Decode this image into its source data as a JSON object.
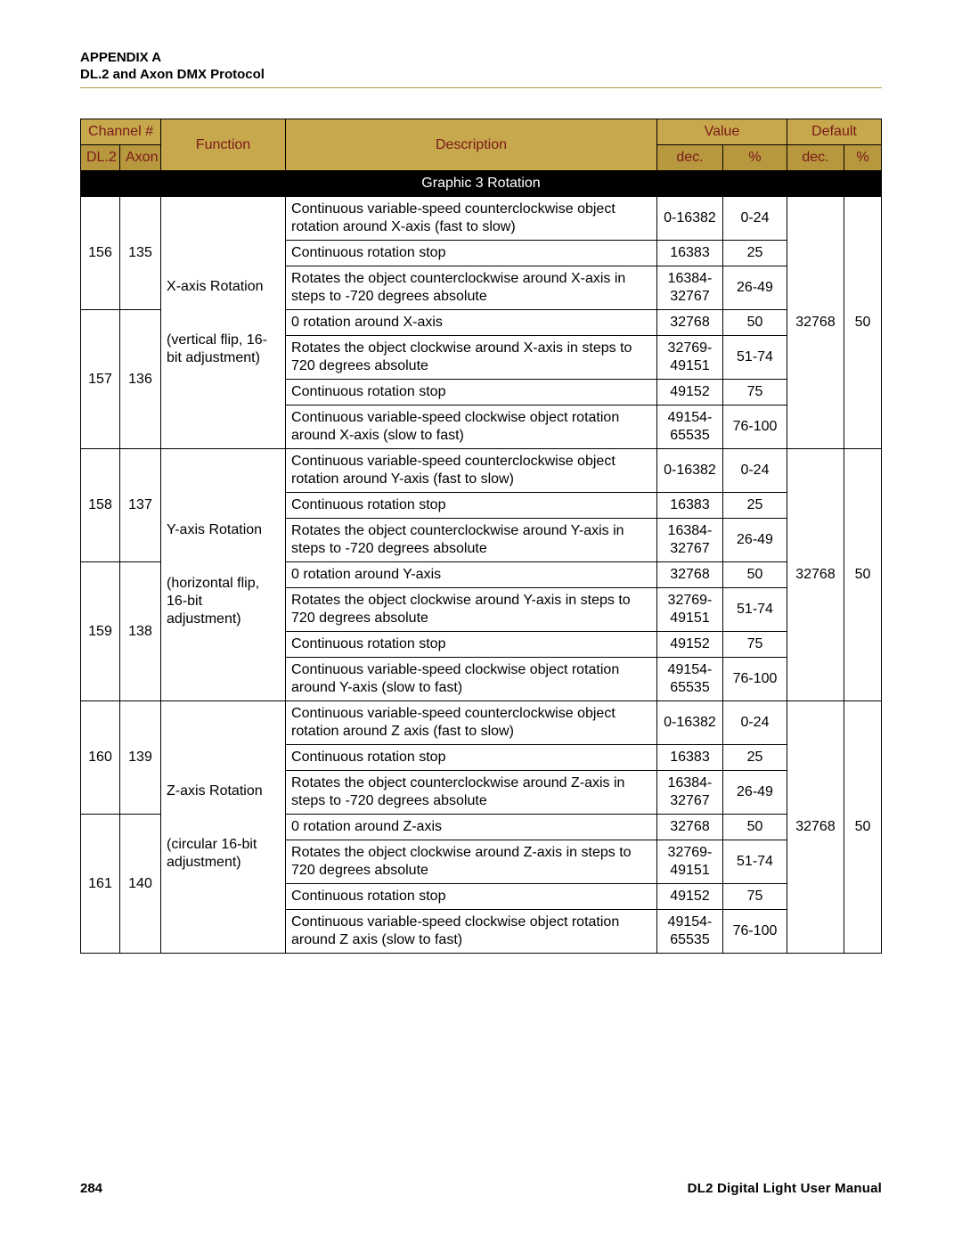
{
  "header": {
    "appendix": "APPENDIX A",
    "subtitle": "DL.2 and Axon DMX Protocol"
  },
  "colors": {
    "rule": "#b69a48",
    "hdr1_bg": "#c7a84c",
    "hdr2_bg": "#b8983e",
    "hdr_text": "#7a1a1a",
    "section_bg": "#000000",
    "section_text": "#ffffff"
  },
  "table": {
    "headers": {
      "channel": "Channel #",
      "function": "Function",
      "description": "Description",
      "value": "Value",
      "default": "Default",
      "dl2": "DL.2",
      "axon": "Axon",
      "dec": "dec.",
      "pct": "%"
    },
    "section_title": "Graphic 3 Rotation",
    "groups": [
      {
        "dl2": [
          "156",
          "157"
        ],
        "axon": [
          "135",
          "136"
        ],
        "func_lines": [
          "X-axis Rotation",
          "",
          "(vertical flip, 16-bit adjustment)"
        ],
        "default_dec": "32768",
        "default_pct": "50",
        "rows": [
          {
            "desc": "Continuous variable-speed counterclockwise object rotation around X-axis (fast to slow)",
            "dec": "0-16382",
            "pct": "0-24"
          },
          {
            "desc": "Continuous rotation stop",
            "dec": "16383",
            "pct": "25"
          },
          {
            "desc": "Rotates the object counterclockwise around X-axis in steps to -720 degrees absolute",
            "dec": "16384-32767",
            "pct": "26-49"
          },
          {
            "desc": "0  rotation around X-axis",
            "dec": "32768",
            "pct": "50"
          },
          {
            "desc": "Rotates the object clockwise around X-axis in steps to 720 degrees absolute",
            "dec": "32769-49151",
            "pct": "51-74"
          },
          {
            "desc": "Continuous rotation stop",
            "dec": "49152",
            "pct": "75"
          },
          {
            "desc": "Continuous variable-speed clockwise object rotation around X-axis (slow to fast)",
            "dec": "49154-65535",
            "pct": "76-100"
          }
        ]
      },
      {
        "dl2": [
          "158",
          "159"
        ],
        "axon": [
          "137",
          "138"
        ],
        "func_lines": [
          "Y-axis Rotation",
          "",
          "(horizontal flip, 16-bit adjustment)"
        ],
        "default_dec": "32768",
        "default_pct": "50",
        "rows": [
          {
            "desc": "Continuous variable-speed counterclockwise object rotation around Y-axis (fast to slow)",
            "dec": "0-16382",
            "pct": "0-24"
          },
          {
            "desc": "Continuous rotation stop",
            "dec": "16383",
            "pct": "25"
          },
          {
            "desc": "Rotates the object counterclockwise around Y-axis in steps to -720 degrees absolute",
            "dec": "16384-32767",
            "pct": "26-49"
          },
          {
            "desc": "0  rotation around Y-axis",
            "dec": "32768",
            "pct": "50"
          },
          {
            "desc": "Rotates the object clockwise around Y-axis in steps to 720 degrees absolute",
            "dec": "32769-49151",
            "pct": "51-74"
          },
          {
            "desc": "Continuous rotation stop",
            "dec": "49152",
            "pct": "75"
          },
          {
            "desc": "Continuous variable-speed clockwise object rotation around Y-axis (slow to fast)",
            "dec": "49154-65535",
            "pct": "76-100"
          }
        ]
      },
      {
        "dl2": [
          "160",
          "161"
        ],
        "axon": [
          "139",
          "140"
        ],
        "func_lines": [
          "Z-axis Rotation",
          "",
          "(circular 16-bit adjustment)"
        ],
        "default_dec": "32768",
        "default_pct": "50",
        "rows": [
          {
            "desc": "Continuous variable-speed counterclockwise object rotation around Z axis (fast to slow)",
            "dec": "0-16382",
            "pct": "0-24"
          },
          {
            "desc": "Continuous rotation stop",
            "dec": "16383",
            "pct": "25"
          },
          {
            "desc": "Rotates the object counterclockwise around Z-axis in steps to -720 degrees absolute",
            "dec": "16384-32767",
            "pct": "26-49"
          },
          {
            "desc": "0  rotation around Z-axis",
            "dec": "32768",
            "pct": "50"
          },
          {
            "desc": "Rotates the object clockwise around Z-axis in steps to 720 degrees absolute",
            "dec": "32769-49151",
            "pct": "51-74"
          },
          {
            "desc": "Continuous rotation stop",
            "dec": "49152",
            "pct": "75"
          },
          {
            "desc": "Continuous variable-speed clockwise object rotation around Z axis (slow to fast)",
            "dec": "49154-65535",
            "pct": "76-100"
          }
        ]
      }
    ]
  },
  "footer": {
    "page": "284",
    "manual": "DL2 Digital Light User Manual"
  }
}
